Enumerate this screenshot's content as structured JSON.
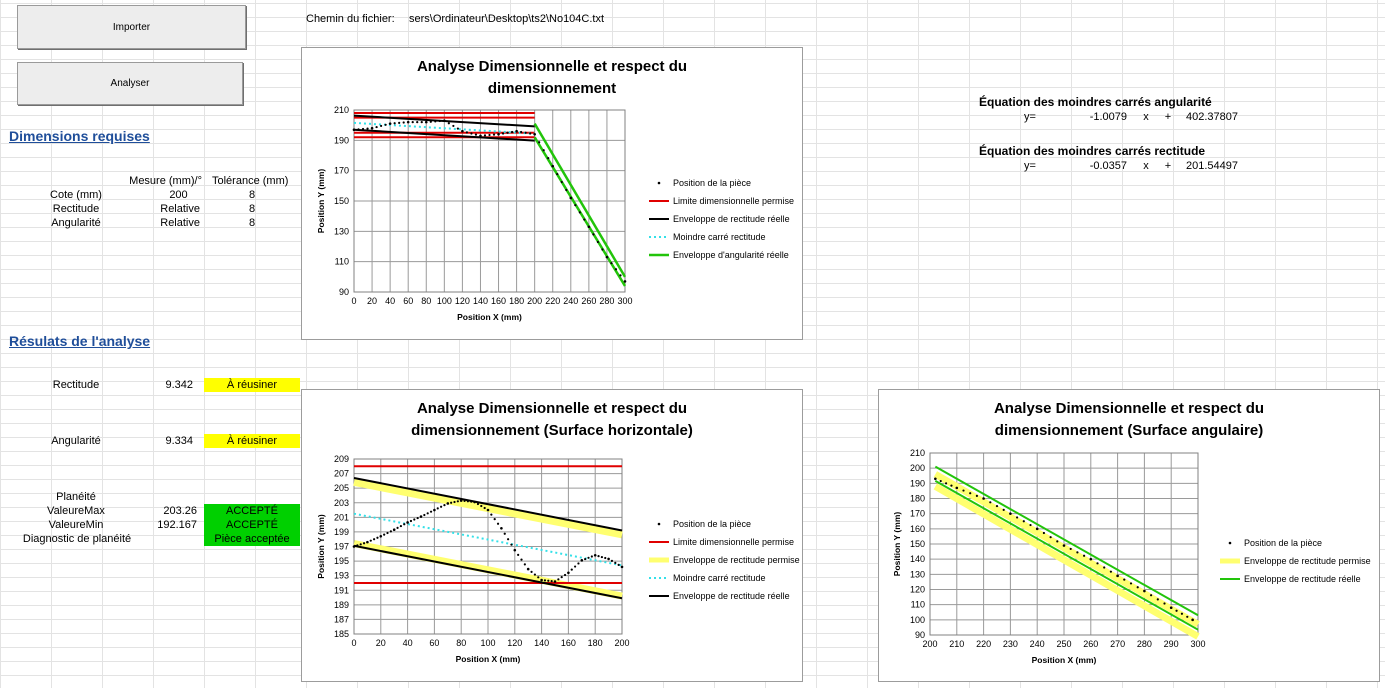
{
  "buttons": {
    "import_label": "Importer",
    "analyze_label": "Analyser"
  },
  "file_path": {
    "label": "Chemin du fichier:",
    "value": "sers\\Ordinateur\\Desktop\\ts2\\No104C.txt"
  },
  "required": {
    "title": "Dimensions requises",
    "headers": {
      "measure": "Mesure (mm)/°",
      "tolerance": "Tolérance (mm)"
    },
    "rows": [
      {
        "label": "Cote (mm)",
        "measure": "200",
        "tolerance": "8"
      },
      {
        "label": "Rectitude",
        "measure": "Relative",
        "tolerance": "8"
      },
      {
        "label": "Angularité",
        "measure": "Relative",
        "tolerance": "8"
      }
    ]
  },
  "results": {
    "title": "Résulats de l'analyse",
    "straightness": {
      "label": "Rectitude",
      "value": "9.342",
      "status": "À réusiner"
    },
    "angularity": {
      "label": "Angularité",
      "value": "9.334",
      "status": "À réusiner"
    },
    "flatness": {
      "label": "Planéité",
      "max_label": "ValeureMax",
      "max_value": "203.26",
      "max_status": "ACCEPTÉ",
      "min_label": "ValeureMin",
      "min_value": "192.167",
      "min_status": "ACCEPTÉ",
      "diag_label": "Diagnostic de planéité",
      "diag_status": "Pièce acceptée"
    }
  },
  "equations": {
    "angular": {
      "title": "Équation des moindres carrés angularité",
      "y": "y=",
      "slope": "-1.0079",
      "x": "x",
      "plus": "+",
      "intercept": "402.37807"
    },
    "straight": {
      "title": "Équation des moindres carrés rectitude",
      "y": "y=",
      "slope": "-0.0357",
      "x": "x",
      "plus": "+",
      "intercept": "201.54497"
    }
  },
  "colors": {
    "red": "#e00000",
    "black": "#000000",
    "cyan": "#33e0e8",
    "green": "#22c40a",
    "yellow": "#ffff70"
  },
  "charts": {
    "main": {
      "title": "Analyse Dimensionnelle et respect du dimensionnement",
      "xlabel": "Position X (mm)",
      "ylabel": "Position Y (mm)",
      "legend": [
        "Position de la pièce",
        "Limite dimensionnelle permise",
        "Enveloppe de rectitude réelle",
        "Moindre carré rectitude",
        "Enveloppe d'angularité réelle"
      ]
    },
    "horizontal": {
      "title": "Analyse Dimensionnelle et respect du dimensionnement (Surface horizontale)",
      "xlabel": "Position X (mm)",
      "ylabel": "Position Y (mm)",
      "legend": [
        "Position de la pièce",
        "Limite dimensionnelle permise",
        "Enveloppe de rectitude permise",
        "Moindre carré rectitude",
        "Enveloppe de rectitude réelle"
      ]
    },
    "angular": {
      "title": "Analyse Dimensionnelle et respect du dimensionnement (Surface angulaire)",
      "xlabel": "Position X (mm)",
      "ylabel": "Position Y (mm)",
      "legend": [
        "Position de la pièce",
        "Enveloppe de rectitude permise",
        "Enveloppe de rectitude réelle"
      ]
    }
  },
  "chart_data": [
    {
      "type": "scatter",
      "title": "Analyse Dimensionnelle et respect du dimensionnement",
      "xlabel": "Position X (mm)",
      "ylabel": "Position Y (mm)",
      "xlim": [
        0,
        300
      ],
      "ylim": [
        90,
        210
      ],
      "xticks": [
        0,
        20,
        40,
        60,
        80,
        100,
        120,
        140,
        160,
        180,
        200,
        220,
        240,
        260,
        280,
        300
      ],
      "yticks": [
        90,
        110,
        130,
        150,
        170,
        190,
        210
      ],
      "grid": true,
      "legend_position": "right",
      "series": [
        {
          "name": "Position de la pièce",
          "kind": "points",
          "x": [
            0,
            20,
            40,
            60,
            80,
            100,
            120,
            140,
            160,
            180,
            200,
            220,
            240,
            260,
            280,
            300
          ],
          "y": [
            197,
            198,
            201,
            202,
            202,
            203,
            196,
            193,
            194,
            196,
            194,
            173,
            152,
            133,
            113,
            97
          ]
        },
        {
          "name": "Limite dimensionnelle permise",
          "kind": "lines",
          "segments": [
            [
              [
                0,
                208
              ],
              [
                200,
                208
              ]
            ],
            [
              [
                0,
                205
              ],
              [
                200,
                205
              ]
            ],
            [
              [
                0,
                195
              ],
              [
                200,
                195
              ]
            ],
            [
              [
                0,
                192
              ],
              [
                200,
                192
              ]
            ]
          ]
        },
        {
          "name": "Enveloppe de rectitude réelle",
          "kind": "lines",
          "segments": [
            [
              [
                0,
                206.3
              ],
              [
                200,
                199.2
              ]
            ],
            [
              [
                0,
                197
              ],
              [
                200,
                189.8
              ]
            ]
          ]
        },
        {
          "name": "Moindre carré rectitude",
          "kind": "dashed",
          "x": [
            0,
            200
          ],
          "y": [
            201.5,
            194.4
          ]
        },
        {
          "name": "Enveloppe d'angularité réelle",
          "kind": "lines",
          "segments": [
            [
              [
                200,
                201
              ],
              [
                300,
                100
              ]
            ],
            [
              [
                200,
                192
              ],
              [
                300,
                94
              ]
            ]
          ]
        }
      ]
    },
    {
      "type": "scatter",
      "title": "Analyse Dimensionnelle et respect du dimensionnement (Surface horizontale)",
      "xlabel": "Position X (mm)",
      "ylabel": "Position Y (mm)",
      "xlim": [
        0,
        200
      ],
      "ylim": [
        185,
        209
      ],
      "xticks": [
        0,
        20,
        40,
        60,
        80,
        100,
        120,
        140,
        160,
        180,
        200
      ],
      "yticks": [
        185,
        187,
        189,
        191,
        193,
        195,
        197,
        199,
        201,
        203,
        205,
        207,
        209
      ],
      "grid": true,
      "legend_position": "right",
      "series": [
        {
          "name": "Position de la pièce",
          "kind": "points",
          "x": [
            0,
            10,
            20,
            30,
            40,
            50,
            60,
            70,
            80,
            90,
            100,
            110,
            120,
            130,
            140,
            150,
            160,
            170,
            180,
            190,
            200
          ],
          "y": [
            197,
            197.6,
            198.4,
            199.3,
            200.3,
            201.1,
            202,
            202.9,
            203.3,
            203.1,
            202,
            199.5,
            196.5,
            193.9,
            192.4,
            192.2,
            193.4,
            195.1,
            195.8,
            195.3,
            194.2
          ]
        },
        {
          "name": "Limite dimensionnelle permise",
          "kind": "lines",
          "segments": [
            [
              [
                0,
                208
              ],
              [
                200,
                208
              ]
            ],
            [
              [
                0,
                192
              ],
              [
                200,
                192
              ]
            ]
          ]
        },
        {
          "name": "Enveloppe de rectitude permise",
          "kind": "band",
          "segments": [
            [
              [
                0,
                205.8
              ],
              [
                200,
                198.6
              ]
            ],
            [
              [
                0,
                197.4
              ],
              [
                200,
                190.2
              ]
            ]
          ]
        },
        {
          "name": "Moindre carré rectitude",
          "kind": "dashed",
          "x": [
            0,
            200
          ],
          "y": [
            201.5,
            194.4
          ]
        },
        {
          "name": "Enveloppe de rectitude réelle",
          "kind": "lines",
          "segments": [
            [
              [
                0,
                206.4
              ],
              [
                200,
                199.2
              ]
            ],
            [
              [
                0,
                197.1
              ],
              [
                200,
                189.9
              ]
            ]
          ]
        }
      ]
    },
    {
      "type": "scatter",
      "title": "Analyse Dimensionnelle et respect du dimensionnement (Surface angulaire)",
      "xlabel": "Position X (mm)",
      "ylabel": "Position Y (mm)",
      "xlim": [
        200,
        300
      ],
      "ylim": [
        90,
        210
      ],
      "xticks": [
        200,
        210,
        220,
        230,
        240,
        250,
        260,
        270,
        280,
        290,
        300
      ],
      "yticks": [
        90,
        100,
        110,
        120,
        130,
        140,
        150,
        160,
        170,
        180,
        190,
        200,
        210
      ],
      "grid": true,
      "legend_position": "right",
      "series": [
        {
          "name": "Position de la pièce",
          "kind": "points",
          "x": [
            202,
            210,
            220,
            230,
            240,
            250,
            260,
            270,
            280,
            290,
            298
          ],
          "y": [
            193,
            187,
            180,
            170,
            160,
            149,
            140,
            129,
            119,
            108,
            100
          ]
        },
        {
          "name": "Enveloppe de rectitude permise",
          "kind": "band",
          "segments": [
            [
              [
                202,
                196
              ],
              [
                300,
                97
              ]
            ],
            [
              [
                202,
                188
              ],
              [
                300,
                89
              ]
            ]
          ]
        },
        {
          "name": "Enveloppe de rectitude réelle",
          "kind": "lines",
          "segments": [
            [
              [
                202,
                201
              ],
              [
                300,
                103
              ]
            ],
            [
              [
                202,
                191.6
              ],
              [
                300,
                93.5
              ]
            ]
          ]
        }
      ]
    }
  ]
}
